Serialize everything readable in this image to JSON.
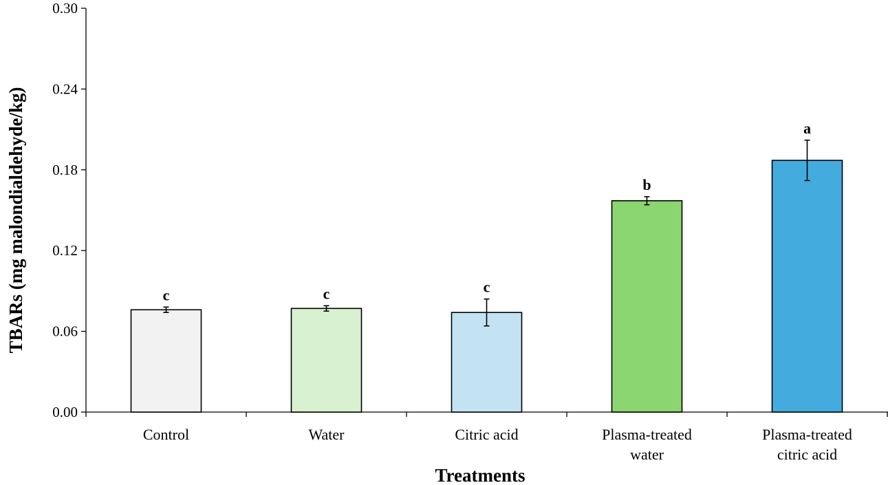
{
  "chart_data": {
    "type": "bar",
    "title": "",
    "xlabel": "Treatments",
    "ylabel": "TBARs (mg malondialdehyde/kg)",
    "ylim": [
      0,
      0.3
    ],
    "yticks": [
      "0.00",
      "0.06",
      "0.12",
      "0.18",
      "0.24",
      "0.30"
    ],
    "ytick_values": [
      0,
      0.06,
      0.12,
      0.18,
      0.24,
      0.3
    ],
    "grid": false,
    "categories": [
      [
        "Control"
      ],
      [
        "Water"
      ],
      [
        "Citric acid"
      ],
      [
        "Plasma-treated",
        "water"
      ],
      [
        "Plasma-treated",
        "citric acid"
      ]
    ],
    "values": [
      0.076,
      0.077,
      0.074,
      0.157,
      0.187
    ],
    "errors": [
      0.002,
      0.002,
      0.01,
      0.003,
      0.015
    ],
    "significance": [
      "c",
      "c",
      "c",
      "b",
      "a"
    ],
    "colors": [
      "#f2f2f2",
      "#d8f1d0",
      "#c3e3f3",
      "#8cd672",
      "#44abdf"
    ]
  }
}
